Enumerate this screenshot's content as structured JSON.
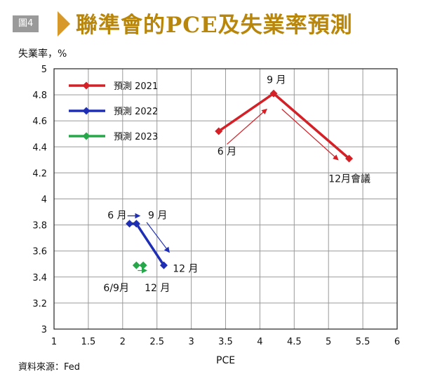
{
  "header": {
    "badge": "圖4",
    "title": "聯準會的PCE及失業率預測"
  },
  "chart_data": {
    "type": "line",
    "title": "聯準會的PCE及失業率預測",
    "xlabel": "PCE",
    "ylabel": "失業率，%",
    "xlim": [
      1,
      6
    ],
    "ylim": [
      3,
      5
    ],
    "x_ticks": [
      1,
      1.5,
      2,
      2.5,
      3,
      3.5,
      4,
      4.5,
      5,
      5.5,
      6
    ],
    "x_tick_labels": [
      "1",
      "1.5",
      "2",
      "2.5",
      "3",
      "3.5",
      "4",
      "4.5",
      "5",
      "5.5",
      "6"
    ],
    "y_ticks": [
      3,
      3.2,
      3.4,
      3.6,
      3.8,
      4,
      4.2,
      4.4,
      4.6,
      4.8,
      5
    ],
    "y_tick_labels": [
      "3",
      "3.2",
      "3.4",
      "3.6",
      "3.8",
      "4",
      "4.2",
      "4.4",
      "4.6",
      "4.8",
      "5"
    ],
    "grid": true,
    "legend_position": "top-left",
    "series": [
      {
        "name": "預測 2021",
        "color": "#d42027",
        "points": [
          {
            "x": 3.4,
            "y": 4.52
          },
          {
            "x": 4.2,
            "y": 4.81
          },
          {
            "x": 5.3,
            "y": 4.31
          }
        ]
      },
      {
        "name": "預測 2022",
        "color": "#1f2fb5",
        "points": [
          {
            "x": 2.1,
            "y": 3.81
          },
          {
            "x": 2.2,
            "y": 3.81
          },
          {
            "x": 2.6,
            "y": 3.49
          }
        ]
      },
      {
        "name": "預測 2023",
        "color": "#26a84a",
        "points": [
          {
            "x": 2.2,
            "y": 3.49
          },
          {
            "x": 2.3,
            "y": 3.49
          }
        ]
      }
    ],
    "annotations": [
      {
        "text": "6 月",
        "x": 3.38,
        "y": 4.34
      },
      {
        "text": "9 月",
        "x": 4.1,
        "y": 4.89
      },
      {
        "text": "12月會議",
        "x": 5.0,
        "y": 4.13
      },
      {
        "text": "6 月",
        "x": 1.78,
        "y": 3.85
      },
      {
        "text": "9 月",
        "x": 2.37,
        "y": 3.85
      },
      {
        "text": "12 月",
        "x": 2.73,
        "y": 3.44
      },
      {
        "text": "6/9月",
        "x": 1.72,
        "y": 3.29
      },
      {
        "text": "12 月",
        "x": 2.32,
        "y": 3.29
      }
    ],
    "trend_arrows": [
      {
        "color": "#d42027",
        "from": [
          3.52,
          4.42
        ],
        "to": [
          4.1,
          4.69
        ]
      },
      {
        "color": "#d42027",
        "from": [
          4.32,
          4.69
        ],
        "to": [
          5.14,
          4.3
        ]
      },
      {
        "color": "#1f2fb5",
        "from": [
          2.07,
          3.87
        ],
        "to": [
          2.25,
          3.87
        ]
      },
      {
        "color": "#1f2fb5",
        "from": [
          2.35,
          3.82
        ],
        "to": [
          2.68,
          3.59
        ]
      },
      {
        "color": "#26a84a",
        "from": [
          2.22,
          3.45
        ],
        "to": [
          2.35,
          3.45
        ]
      }
    ]
  },
  "footer": {
    "source": "資料來源：Fed"
  }
}
